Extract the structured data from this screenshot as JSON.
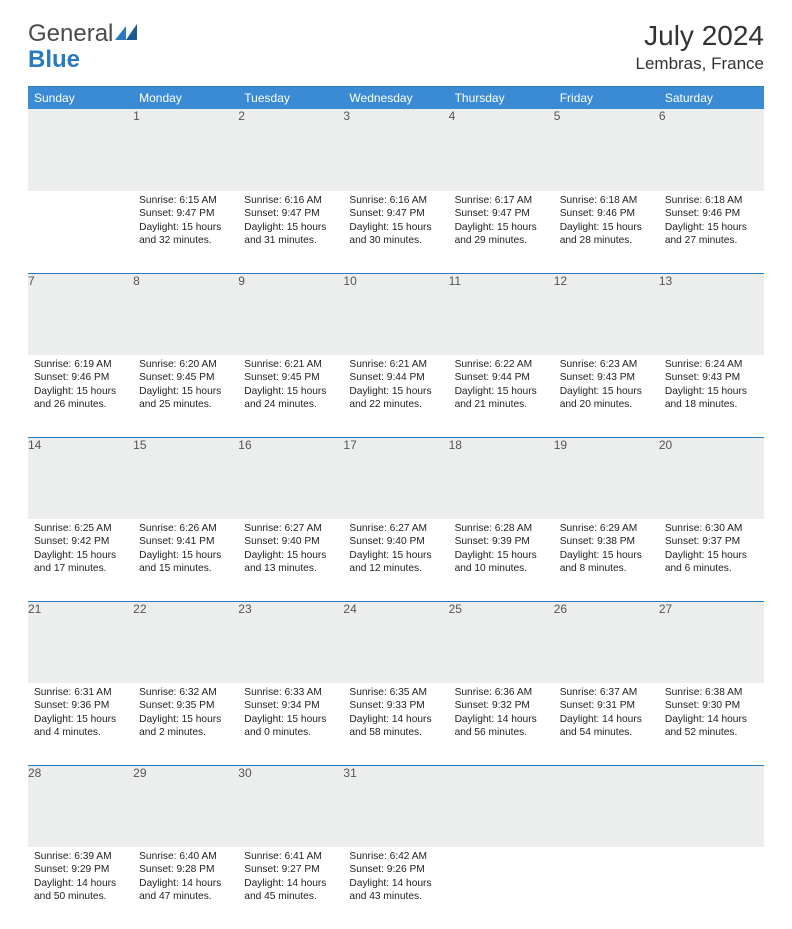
{
  "brand": {
    "part1": "General",
    "part2": "Blue"
  },
  "title": "July 2024",
  "location": "Lembras, France",
  "colors": {
    "header_bg": "#3b8bd4",
    "rule": "#2a7abf",
    "gray_row": "#eceded",
    "text": "#222222"
  },
  "day_headers": [
    "Sunday",
    "Monday",
    "Tuesday",
    "Wednesday",
    "Thursday",
    "Friday",
    "Saturday"
  ],
  "weeks": [
    [
      {
        "n": "",
        "s": "",
        "sr": "",
        "ss": "",
        "dl": ""
      },
      {
        "n": "1",
        "sr": "6:15 AM",
        "ss": "9:47 PM",
        "dl": "15 hours and 32 minutes."
      },
      {
        "n": "2",
        "sr": "6:16 AM",
        "ss": "9:47 PM",
        "dl": "15 hours and 31 minutes."
      },
      {
        "n": "3",
        "sr": "6:16 AM",
        "ss": "9:47 PM",
        "dl": "15 hours and 30 minutes."
      },
      {
        "n": "4",
        "sr": "6:17 AM",
        "ss": "9:47 PM",
        "dl": "15 hours and 29 minutes."
      },
      {
        "n": "5",
        "sr": "6:18 AM",
        "ss": "9:46 PM",
        "dl": "15 hours and 28 minutes."
      },
      {
        "n": "6",
        "sr": "6:18 AM",
        "ss": "9:46 PM",
        "dl": "15 hours and 27 minutes."
      }
    ],
    [
      {
        "n": "7",
        "sr": "6:19 AM",
        "ss": "9:46 PM",
        "dl": "15 hours and 26 minutes."
      },
      {
        "n": "8",
        "sr": "6:20 AM",
        "ss": "9:45 PM",
        "dl": "15 hours and 25 minutes."
      },
      {
        "n": "9",
        "sr": "6:21 AM",
        "ss": "9:45 PM",
        "dl": "15 hours and 24 minutes."
      },
      {
        "n": "10",
        "sr": "6:21 AM",
        "ss": "9:44 PM",
        "dl": "15 hours and 22 minutes."
      },
      {
        "n": "11",
        "sr": "6:22 AM",
        "ss": "9:44 PM",
        "dl": "15 hours and 21 minutes."
      },
      {
        "n": "12",
        "sr": "6:23 AM",
        "ss": "9:43 PM",
        "dl": "15 hours and 20 minutes."
      },
      {
        "n": "13",
        "sr": "6:24 AM",
        "ss": "9:43 PM",
        "dl": "15 hours and 18 minutes."
      }
    ],
    [
      {
        "n": "14",
        "sr": "6:25 AM",
        "ss": "9:42 PM",
        "dl": "15 hours and 17 minutes."
      },
      {
        "n": "15",
        "sr": "6:26 AM",
        "ss": "9:41 PM",
        "dl": "15 hours and 15 minutes."
      },
      {
        "n": "16",
        "sr": "6:27 AM",
        "ss": "9:40 PM",
        "dl": "15 hours and 13 minutes."
      },
      {
        "n": "17",
        "sr": "6:27 AM",
        "ss": "9:40 PM",
        "dl": "15 hours and 12 minutes."
      },
      {
        "n": "18",
        "sr": "6:28 AM",
        "ss": "9:39 PM",
        "dl": "15 hours and 10 minutes."
      },
      {
        "n": "19",
        "sr": "6:29 AM",
        "ss": "9:38 PM",
        "dl": "15 hours and 8 minutes."
      },
      {
        "n": "20",
        "sr": "6:30 AM",
        "ss": "9:37 PM",
        "dl": "15 hours and 6 minutes."
      }
    ],
    [
      {
        "n": "21",
        "sr": "6:31 AM",
        "ss": "9:36 PM",
        "dl": "15 hours and 4 minutes."
      },
      {
        "n": "22",
        "sr": "6:32 AM",
        "ss": "9:35 PM",
        "dl": "15 hours and 2 minutes."
      },
      {
        "n": "23",
        "sr": "6:33 AM",
        "ss": "9:34 PM",
        "dl": "15 hours and 0 minutes."
      },
      {
        "n": "24",
        "sr": "6:35 AM",
        "ss": "9:33 PM",
        "dl": "14 hours and 58 minutes."
      },
      {
        "n": "25",
        "sr": "6:36 AM",
        "ss": "9:32 PM",
        "dl": "14 hours and 56 minutes."
      },
      {
        "n": "26",
        "sr": "6:37 AM",
        "ss": "9:31 PM",
        "dl": "14 hours and 54 minutes."
      },
      {
        "n": "27",
        "sr": "6:38 AM",
        "ss": "9:30 PM",
        "dl": "14 hours and 52 minutes."
      }
    ],
    [
      {
        "n": "28",
        "sr": "6:39 AM",
        "ss": "9:29 PM",
        "dl": "14 hours and 50 minutes."
      },
      {
        "n": "29",
        "sr": "6:40 AM",
        "ss": "9:28 PM",
        "dl": "14 hours and 47 minutes."
      },
      {
        "n": "30",
        "sr": "6:41 AM",
        "ss": "9:27 PM",
        "dl": "14 hours and 45 minutes."
      },
      {
        "n": "31",
        "sr": "6:42 AM",
        "ss": "9:26 PM",
        "dl": "14 hours and 43 minutes."
      },
      {
        "n": "",
        "sr": "",
        "ss": "",
        "dl": ""
      },
      {
        "n": "",
        "sr": "",
        "ss": "",
        "dl": ""
      },
      {
        "n": "",
        "sr": "",
        "ss": "",
        "dl": ""
      }
    ]
  ],
  "labels": {
    "sunrise": "Sunrise:",
    "sunset": "Sunset:",
    "daylight": "Daylight:"
  }
}
